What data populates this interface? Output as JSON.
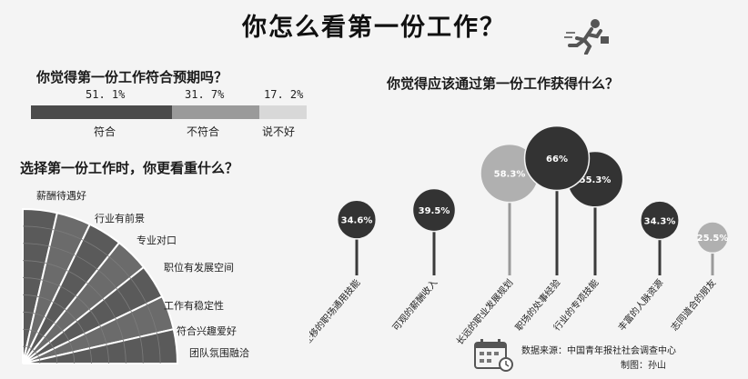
{
  "title": "你怎么看第一份工作？",
  "colors": {
    "dark": "#4a4a4a",
    "mid": "#9a9a9a",
    "light": "#d8d8d8",
    "circle_dark": "#333333",
    "circle_light": "#b0b0b0"
  },
  "chart_data": [
    {
      "type": "bar",
      "title": "你觉得第一份工作符合预期吗？",
      "categories": [
        "符合",
        "不符合",
        "说不好"
      ],
      "values": [
        51.1,
        31.7,
        17.2
      ],
      "value_labels": [
        "51. 1%",
        "31. 7%",
        "17. 2%"
      ]
    },
    {
      "type": "pie",
      "title": "选择第一份工作时，你更看重什么？",
      "categories": [
        "薪酬待遇好",
        "行业有前景",
        "专业对口",
        "职位有发展空间",
        "工作有稳定性",
        "符合兴趣爱好",
        "团队氛围融洽"
      ]
    },
    {
      "type": "scatter",
      "title": "你觉得应该通过第一份工作获得什么？",
      "categories": [
        "可迁移的职场通用技能",
        "可观的薪酬收入",
        "长远的职业发展规划",
        "职场的处事经验",
        "行业的专项技能",
        "丰富的人脉资源",
        "志同道合的朋友"
      ],
      "values": [
        34.6,
        39.5,
        58.3,
        66,
        55.3,
        34.3,
        25.5
      ],
      "value_labels": [
        "34.6%",
        "39.5%",
        "58.3%",
        "66%",
        "55.3%",
        "34.3%",
        "25.5%"
      ],
      "tones": [
        "dark",
        "dark",
        "light",
        "dark",
        "dark",
        "dark",
        "light"
      ]
    }
  ],
  "source": {
    "line1": "数据来源：中国青年报社社会调查中心",
    "line2": "制图：孙山"
  }
}
